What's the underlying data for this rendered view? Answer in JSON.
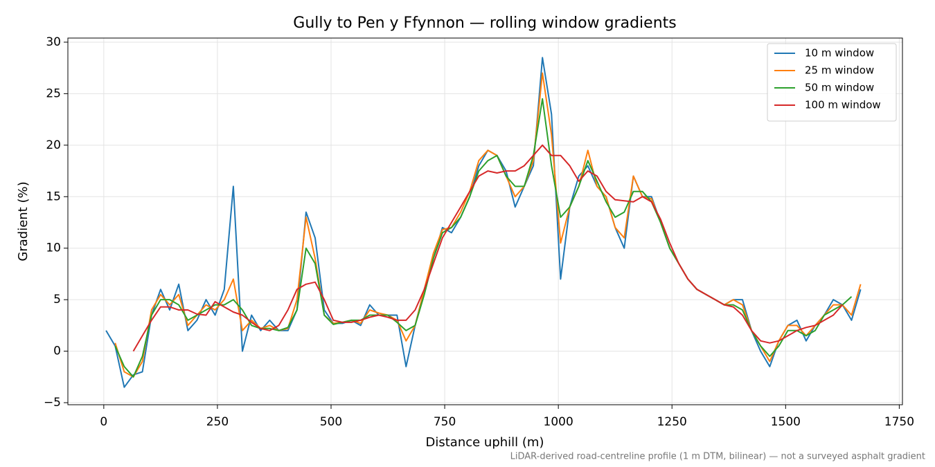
{
  "chart_data": {
    "type": "line",
    "title": "Gully to Pen y Ffynnon — rolling window gradients",
    "xlabel": "Distance uphill (m)",
    "ylabel": "Gradient (%)",
    "note": "LiDAR-derived road-centreline profile (1 m DTM, bilinear) — not a surveyed asphalt gradient",
    "x": [
      5,
      25,
      45,
      65,
      85,
      105,
      125,
      145,
      165,
      185,
      205,
      225,
      245,
      265,
      285,
      305,
      325,
      345,
      365,
      385,
      405,
      425,
      445,
      465,
      485,
      505,
      525,
      545,
      565,
      585,
      605,
      625,
      645,
      665,
      685,
      705,
      725,
      745,
      765,
      785,
      805,
      825,
      845,
      865,
      885,
      905,
      925,
      945,
      965,
      985,
      1005,
      1025,
      1045,
      1065,
      1085,
      1105,
      1125,
      1145,
      1165,
      1185,
      1205,
      1225,
      1245,
      1265,
      1285,
      1305,
      1325,
      1345,
      1365,
      1385,
      1405,
      1425,
      1445,
      1465,
      1485,
      1505,
      1525,
      1545,
      1565,
      1585,
      1605,
      1625,
      1645,
      1665
    ],
    "series": [
      {
        "name": "10 m window",
        "color": "#1f77b4",
        "values": [
          2,
          0.5,
          -3.5,
          -2.3,
          -2,
          3.5,
          6,
          4,
          6.5,
          2,
          3,
          5,
          3.5,
          6,
          16,
          0,
          3.5,
          2,
          3,
          2,
          2,
          4,
          13.5,
          11,
          4,
          2.7,
          2.7,
          3,
          2.5,
          4.5,
          3.5,
          3.5,
          3.5,
          -1.5,
          2.5,
          6,
          9,
          12,
          11.5,
          13,
          15,
          18,
          19.5,
          19,
          17.5,
          14,
          16,
          18,
          28.5,
          23,
          7,
          14,
          17,
          18,
          16,
          15,
          12,
          10,
          17,
          15,
          15,
          12.5,
          10,
          8.5,
          7,
          6,
          5.5,
          5,
          4.5,
          5,
          5,
          2,
          0,
          -1.5,
          1,
          2.5,
          3,
          1,
          2.5,
          3.5,
          5,
          4.5,
          3,
          6
        ]
      },
      {
        "name": "25 m window",
        "color": "#ff7f0e",
        "values": [
          null,
          0.8,
          -2,
          -2.5,
          -1,
          4,
          5.5,
          4.5,
          5.5,
          2.5,
          3.5,
          4.5,
          4,
          5,
          7,
          2,
          3,
          2.2,
          2.5,
          2,
          2.2,
          5,
          13,
          9,
          3.5,
          2.7,
          2.8,
          3,
          2.7,
          4,
          3.7,
          3.5,
          3,
          1,
          2.5,
          6,
          9.5,
          11.8,
          12,
          13.5,
          15.5,
          18.5,
          19.5,
          19,
          17,
          15,
          16,
          18.5,
          27,
          21,
          10.5,
          14,
          16,
          19.5,
          16,
          15,
          12,
          11,
          17,
          15,
          14.8,
          12.5,
          10,
          8.5,
          7,
          6,
          5.5,
          5,
          4.5,
          5,
          4.5,
          2,
          0.5,
          -1,
          1,
          2.5,
          2.5,
          1.5,
          2.5,
          3.5,
          4.5,
          4.5,
          3.5,
          6.5
        ]
      },
      {
        "name": "50 m window",
        "color": "#2ca02c",
        "values": [
          null,
          0.5,
          -1.5,
          -2.5,
          -0.5,
          3.5,
          5,
          5,
          4.5,
          3,
          3.5,
          4,
          4.5,
          4.5,
          5,
          4,
          2.5,
          2.2,
          2.2,
          2,
          2.3,
          4,
          10,
          8.5,
          3.5,
          2.6,
          2.8,
          3,
          3,
          3.5,
          3.5,
          3.5,
          2.8,
          2,
          2.5,
          5.5,
          9,
          11.5,
          12,
          13,
          15,
          17.5,
          18.5,
          19,
          17,
          16,
          16,
          19,
          24.5,
          18,
          13,
          14,
          16,
          18.5,
          16.5,
          14.5,
          13,
          13.5,
          15.5,
          15.5,
          14.5,
          12.5,
          10,
          8.5,
          7,
          6,
          5.5,
          5,
          4.5,
          4.5,
          4,
          2,
          0.5,
          -0.5,
          0.5,
          2,
          2,
          1.5,
          2,
          3.5,
          4,
          4.5,
          5.3,
          null
        ]
      },
      {
        "name": "100 m window",
        "color": "#d62728",
        "values": [
          null,
          null,
          null,
          0,
          1.5,
          3,
          4.3,
          4.3,
          4,
          4,
          3.6,
          3.5,
          4.8,
          4.3,
          3.8,
          3.5,
          2.8,
          2.2,
          2,
          2.5,
          4,
          6,
          6.5,
          6.7,
          5,
          3,
          2.8,
          2.8,
          3,
          3.3,
          3.5,
          3.3,
          3,
          3,
          4,
          6,
          8.5,
          11,
          12.5,
          14,
          15.5,
          17,
          17.5,
          17.3,
          17.5,
          17.5,
          18,
          19,
          20,
          19,
          19,
          18,
          16.5,
          17.5,
          17,
          15.5,
          14.7,
          14.6,
          14.5,
          15,
          14.5,
          12.8,
          10.5,
          8.5,
          7,
          6,
          5.5,
          5,
          4.5,
          4.3,
          3.5,
          2,
          1,
          0.8,
          1,
          1.5,
          2,
          2.3,
          2.5,
          3,
          3.5,
          4.5,
          null,
          null
        ]
      }
    ],
    "xlim": [
      -79,
      1757
    ],
    "xticks": [
      0,
      250,
      500,
      750,
      1000,
      1250,
      1500,
      1750
    ],
    "ylim": [
      -5.2,
      30.4
    ],
    "yticks": [
      {
        "value": -5,
        "label": "−5"
      },
      0,
      5,
      10,
      15,
      20,
      25,
      30
    ],
    "grid": true,
    "legend": "upper right"
  }
}
